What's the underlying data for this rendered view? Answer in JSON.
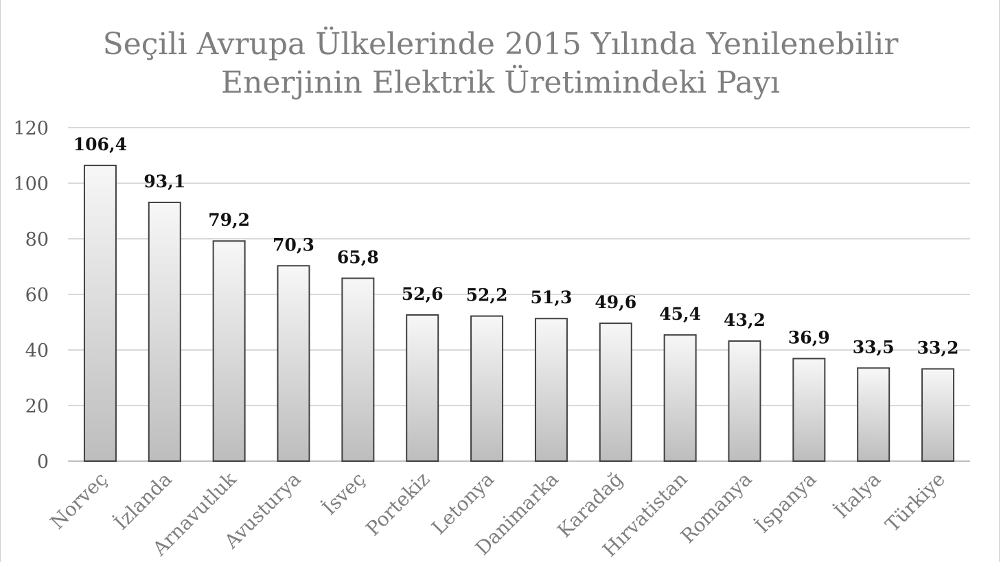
{
  "chart_data": {
    "type": "bar",
    "title": "Seçili Avrupa Ülkelerinde 2015 Yılında Yenilenebilir Enerjinin Elektrik Üretimindeki Payı",
    "title_lines": [
      "Seçili Avrupa Ülkelerinde 2015 Yılında Yenilenebilir",
      "Enerjinin Elektrik Üretimindeki Payı"
    ],
    "categories": [
      "Norveç",
      "İzlanda",
      "Arnavutluk",
      "Avusturya",
      "İsveç",
      "Portekiz",
      "Letonya",
      "Danimarka",
      "Karadağ",
      "Hırvatistan",
      "Romanya",
      "İspanya",
      "İtalya",
      "Türkiye"
    ],
    "values": [
      106.4,
      93.1,
      79.2,
      70.3,
      65.8,
      52.6,
      52.2,
      51.3,
      49.6,
      45.4,
      43.2,
      36.9,
      33.5,
      33.2
    ],
    "data_labels": [
      "106,4",
      "93,1",
      "79,2",
      "70,3",
      "65,8",
      "52,6",
      "52,2",
      "51,3",
      "49,6",
      "45,4",
      "43,2",
      "36,9",
      "33,5",
      "33,2"
    ],
    "xlabel": "",
    "ylabel": "",
    "ylim": [
      0,
      120
    ],
    "yticks": [
      0,
      20,
      40,
      60,
      80,
      100,
      120
    ],
    "grid": true,
    "legend": "none",
    "colors": {
      "bar_light": "#f7f7f7",
      "bar_dark": "#bdbdbd",
      "bar_outline": "#404040",
      "title": "#7f7f7f",
      "gridline": "#d9d9d9"
    }
  }
}
